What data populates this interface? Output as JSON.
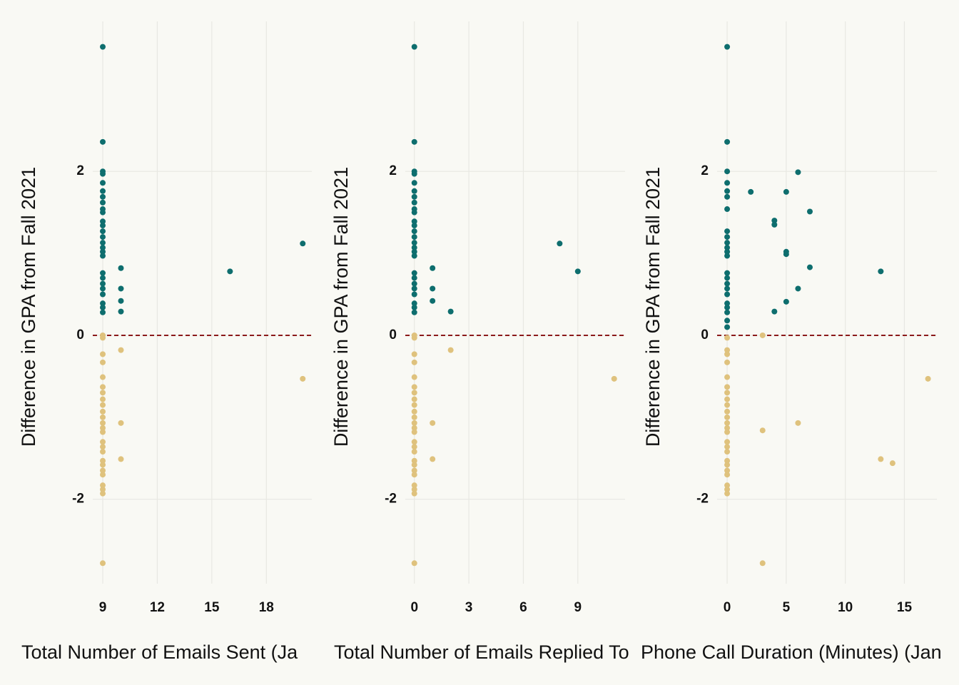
{
  "chart_data": [
    {
      "type": "scatter",
      "x_label": "Total Number of Emails Sent (Ja",
      "y_label": "Difference in GPA from Fall 2021",
      "xlim": [
        8.45,
        20.5
      ],
      "xticks": [
        9,
        12,
        15,
        18
      ],
      "ylim": [
        -3.03,
        3.83
      ],
      "yticks": [
        -2,
        0,
        2
      ],
      "grid": true,
      "hline": 0,
      "hline_color": "#8b1a1a",
      "series": [
        {
          "color": "#0e6e6e",
          "x": [
            9,
            9,
            9,
            9,
            9,
            9,
            9,
            9,
            9,
            9,
            9,
            9,
            9,
            9,
            9,
            9,
            9,
            9,
            9,
            9,
            9,
            9,
            9,
            9,
            9,
            9,
            10,
            10,
            10,
            10,
            16,
            20
          ],
          "values": [
            3.52,
            2.36,
            2.0,
            1.97,
            1.86,
            1.76,
            1.69,
            1.62,
            1.54,
            1.5,
            1.39,
            1.34,
            1.27,
            1.2,
            1.13,
            1.07,
            1.02,
            0.97,
            0.76,
            0.7,
            0.63,
            0.57,
            0.5,
            0.39,
            0.34,
            0.28,
            0.82,
            0.57,
            0.42,
            0.29,
            0.78,
            1.12
          ]
        },
        {
          "color": "#dfc27d",
          "x": [
            9,
            9,
            9,
            9,
            9,
            9,
            9,
            9,
            9,
            9,
            9,
            9,
            9,
            9,
            9,
            9,
            9,
            9,
            9,
            9,
            9,
            9,
            9,
            9,
            9,
            10,
            10,
            10,
            20
          ],
          "values": [
            0,
            -0.03,
            -0.23,
            -0.33,
            -0.51,
            -0.63,
            -0.7,
            -0.78,
            -0.85,
            -0.93,
            -1.0,
            -1.07,
            -1.13,
            -1.18,
            -1.3,
            -1.36,
            -1.42,
            -1.53,
            -1.58,
            -1.65,
            -1.7,
            -1.83,
            -1.88,
            -1.93,
            -2.78,
            -0.18,
            -1.07,
            -1.51,
            -0.53
          ]
        }
      ]
    },
    {
      "type": "scatter",
      "x_label": "Total Number of Emails Replied To",
      "y_label": "Difference in GPA from Fall 2021",
      "xlim": [
        -0.5,
        11.6
      ],
      "xticks": [
        0,
        3,
        6,
        9
      ],
      "ylim": [
        -3.03,
        3.83
      ],
      "yticks": [
        -2,
        0,
        2
      ],
      "grid": true,
      "hline": 0,
      "hline_color": "#8b1a1a",
      "series": [
        {
          "color": "#0e6e6e",
          "x": [
            0,
            0,
            0,
            0,
            0,
            0,
            0,
            0,
            0,
            0,
            0,
            0,
            0,
            0,
            0,
            0,
            0,
            0,
            0,
            0,
            0,
            0,
            0,
            0,
            0,
            0,
            1,
            1,
            1,
            2,
            8,
            9
          ],
          "values": [
            3.52,
            2.36,
            2.0,
            1.97,
            1.86,
            1.76,
            1.69,
            1.62,
            1.54,
            1.5,
            1.39,
            1.34,
            1.27,
            1.2,
            1.13,
            1.07,
            1.02,
            0.97,
            0.76,
            0.7,
            0.63,
            0.57,
            0.5,
            0.39,
            0.34,
            0.28,
            0.82,
            0.57,
            0.42,
            0.29,
            1.12,
            0.78
          ]
        },
        {
          "color": "#dfc27d",
          "x": [
            0,
            0,
            0,
            0,
            0,
            0,
            0,
            0,
            0,
            0,
            0,
            0,
            0,
            0,
            0,
            0,
            0,
            0,
            0,
            0,
            0,
            0,
            0,
            0,
            0,
            1,
            1,
            2,
            11
          ],
          "values": [
            0,
            -0.03,
            -0.23,
            -0.33,
            -0.51,
            -0.63,
            -0.7,
            -0.78,
            -0.85,
            -0.93,
            -1.0,
            -1.07,
            -1.13,
            -1.18,
            -1.3,
            -1.36,
            -1.42,
            -1.53,
            -1.58,
            -1.65,
            -1.7,
            -1.83,
            -1.88,
            -1.93,
            -2.78,
            -1.07,
            -1.51,
            -0.18,
            -0.53
          ]
        }
      ]
    },
    {
      "type": "scatter",
      "x_label": "Phone Call Duration (Minutes) (Jan",
      "y_label": "Difference in GPA from Fall 2021",
      "xlim": [
        -0.85,
        17.75
      ],
      "xticks": [
        0,
        5,
        10,
        15
      ],
      "ylim": [
        -3.03,
        3.83
      ],
      "yticks": [
        -2,
        0,
        2
      ],
      "grid": true,
      "hline": 0,
      "hline_color": "#8b1a1a",
      "series": [
        {
          "color": "#0e6e6e",
          "x": [
            0,
            0,
            0,
            0,
            0,
            0,
            0,
            0,
            0,
            0,
            0,
            0,
            0,
            0,
            0,
            0,
            0,
            0,
            0,
            0,
            0,
            0,
            0,
            2,
            4,
            4,
            4,
            5,
            5,
            5,
            5,
            6,
            6,
            7,
            7,
            13
          ],
          "values": [
            3.52,
            2.36,
            2.0,
            1.86,
            1.76,
            1.69,
            1.54,
            1.27,
            1.2,
            1.13,
            1.07,
            1.02,
            0.97,
            0.76,
            0.7,
            0.63,
            0.57,
            0.5,
            0.39,
            0.34,
            0.28,
            0.18,
            0.1,
            1.75,
            1.4,
            1.35,
            0.29,
            1.75,
            1.02,
            0.99,
            0.41,
            1.99,
            0.57,
            1.51,
            0.83,
            0.78
          ]
        },
        {
          "color": "#dfc27d",
          "x": [
            0,
            0,
            0,
            0,
            0,
            0,
            0,
            0,
            0,
            0,
            0,
            0,
            0,
            0,
            0,
            0,
            0,
            0,
            0,
            0,
            0,
            0,
            0,
            0,
            3,
            3,
            3,
            6,
            13,
            14,
            17
          ],
          "values": [
            -0.03,
            -0.18,
            -0.23,
            -0.33,
            -0.51,
            -0.63,
            -0.7,
            -0.78,
            -0.85,
            -0.93,
            -1.0,
            -1.07,
            -1.13,
            -1.18,
            -1.3,
            -1.36,
            -1.42,
            -1.53,
            -1.58,
            -1.65,
            -1.7,
            -1.83,
            -1.88,
            -1.93,
            0,
            -1.16,
            -2.78,
            -1.07,
            -1.51,
            -1.56,
            -0.53
          ]
        }
      ]
    }
  ]
}
